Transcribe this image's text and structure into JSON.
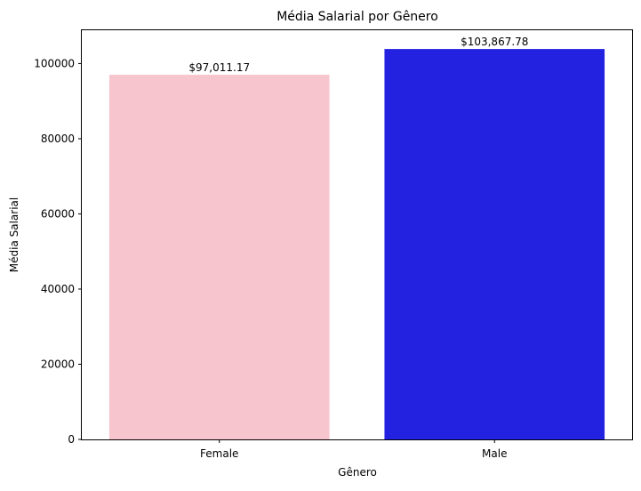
{
  "chart_data": {
    "type": "bar",
    "title": "Média Salarial por Gênero",
    "xlabel": "Gênero",
    "ylabel": "Média Salarial",
    "categories": [
      "Female",
      "Male"
    ],
    "values": [
      97011.17,
      103867.78
    ],
    "value_labels": [
      "$97,011.17",
      "$103,867.78"
    ],
    "colors": [
      "#f7c5cd",
      "#2222e0"
    ],
    "ylim": [
      0,
      108860
    ],
    "yticks": [
      0,
      20000,
      40000,
      60000,
      80000,
      100000
    ],
    "ytick_labels": [
      "0",
      "20000",
      "40000",
      "60000",
      "80000",
      "100000"
    ],
    "grid": false,
    "legend": false
  }
}
